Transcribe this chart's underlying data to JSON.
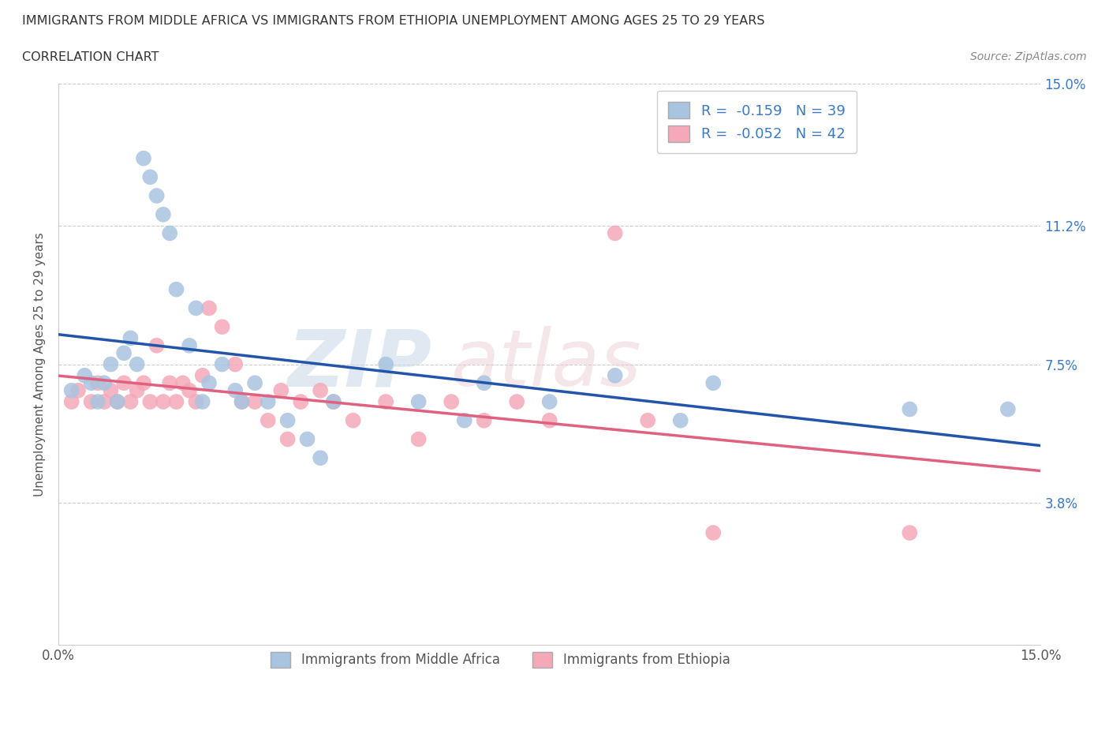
{
  "title_line1": "IMMIGRANTS FROM MIDDLE AFRICA VS IMMIGRANTS FROM ETHIOPIA UNEMPLOYMENT AMONG AGES 25 TO 29 YEARS",
  "title_line2": "CORRELATION CHART",
  "source_text": "Source: ZipAtlas.com",
  "ylabel": "Unemployment Among Ages 25 to 29 years",
  "xlim": [
    0.0,
    0.15
  ],
  "ylim": [
    0.0,
    0.15
  ],
  "ytick_values": [
    0.0,
    0.038,
    0.075,
    0.112,
    0.15
  ],
  "ytick_labels": [
    "",
    "3.8%",
    "7.5%",
    "11.2%",
    "15.0%"
  ],
  "r_blue": -0.159,
  "n_blue": 39,
  "r_pink": -0.052,
  "n_pink": 42,
  "blue_color": "#a8c4e0",
  "pink_color": "#f4a8b8",
  "blue_line_color": "#2255aa",
  "pink_line_color": "#e06080",
  "watermark_zip": "ZIP",
  "watermark_atlas": "atlas",
  "blue_scatter_x": [
    0.002,
    0.004,
    0.005,
    0.006,
    0.007,
    0.008,
    0.009,
    0.01,
    0.011,
    0.012,
    0.013,
    0.014,
    0.015,
    0.016,
    0.017,
    0.018,
    0.02,
    0.021,
    0.022,
    0.023,
    0.025,
    0.027,
    0.028,
    0.03,
    0.032,
    0.035,
    0.038,
    0.04,
    0.042,
    0.05,
    0.055,
    0.062,
    0.065,
    0.075,
    0.085,
    0.095,
    0.1,
    0.13,
    0.145
  ],
  "blue_scatter_y": [
    0.068,
    0.072,
    0.07,
    0.065,
    0.07,
    0.075,
    0.065,
    0.078,
    0.082,
    0.075,
    0.13,
    0.125,
    0.12,
    0.115,
    0.11,
    0.095,
    0.08,
    0.09,
    0.065,
    0.07,
    0.075,
    0.068,
    0.065,
    0.07,
    0.065,
    0.06,
    0.055,
    0.05,
    0.065,
    0.075,
    0.065,
    0.06,
    0.07,
    0.065,
    0.072,
    0.06,
    0.07,
    0.063,
    0.063
  ],
  "pink_scatter_x": [
    0.002,
    0.003,
    0.005,
    0.006,
    0.007,
    0.008,
    0.009,
    0.01,
    0.011,
    0.012,
    0.013,
    0.014,
    0.015,
    0.016,
    0.017,
    0.018,
    0.019,
    0.02,
    0.021,
    0.022,
    0.023,
    0.025,
    0.027,
    0.028,
    0.03,
    0.032,
    0.034,
    0.035,
    0.037,
    0.04,
    0.042,
    0.045,
    0.05,
    0.055,
    0.06,
    0.065,
    0.07,
    0.075,
    0.085,
    0.09,
    0.1,
    0.13
  ],
  "pink_scatter_y": [
    0.065,
    0.068,
    0.065,
    0.07,
    0.065,
    0.068,
    0.065,
    0.07,
    0.065,
    0.068,
    0.07,
    0.065,
    0.08,
    0.065,
    0.07,
    0.065,
    0.07,
    0.068,
    0.065,
    0.072,
    0.09,
    0.085,
    0.075,
    0.065,
    0.065,
    0.06,
    0.068,
    0.055,
    0.065,
    0.068,
    0.065,
    0.06,
    0.065,
    0.055,
    0.065,
    0.06,
    0.065,
    0.06,
    0.11,
    0.06,
    0.03,
    0.03
  ],
  "legend_label_blue": "Immigrants from Middle Africa",
  "legend_label_pink": "Immigrants from Ethiopia",
  "background_color": "#ffffff",
  "grid_color": "#cccccc"
}
